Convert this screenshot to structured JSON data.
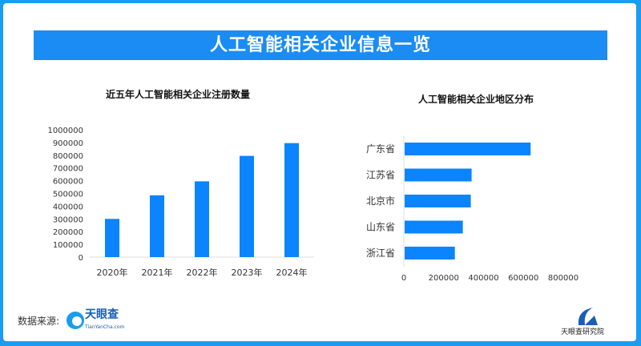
{
  "title": "人工智能相关企业信息一览",
  "colors": {
    "bar": "#0a84ff",
    "frame": "#1a9cf0",
    "banner": "#1a8cf4"
  },
  "chart_data": [
    {
      "type": "bar",
      "title": "近五年人工智能相关企业注册数量",
      "categories": [
        "2020年",
        "2021年",
        "2022年",
        "2023年",
        "2024年"
      ],
      "values": [
        300000,
        485000,
        595000,
        795000,
        895000
      ],
      "ylim": [
        0,
        1000000
      ],
      "yticks": [
        "0",
        "100000",
        "200000",
        "300000",
        "400000",
        "500000",
        "600000",
        "700000",
        "800000",
        "900000",
        "1000000"
      ],
      "grid": false
    },
    {
      "type": "bar",
      "orientation": "horizontal",
      "title": "人工智能相关企业地区分布",
      "categories": [
        "广东省",
        "江苏省",
        "北京市",
        "山东省",
        "浙江省"
      ],
      "values": [
        632000,
        336000,
        332000,
        292000,
        252000
      ],
      "xlim": [
        0,
        800000
      ],
      "xticks": [
        "0",
        "200000",
        "400000",
        "600000",
        "800000"
      ],
      "grid": false
    }
  ],
  "footer": {
    "source_label": "数据来源:",
    "source_logo": "天眼查",
    "source_logo_sub": "TianYanCha.com",
    "institute": "天眼查研究院"
  }
}
